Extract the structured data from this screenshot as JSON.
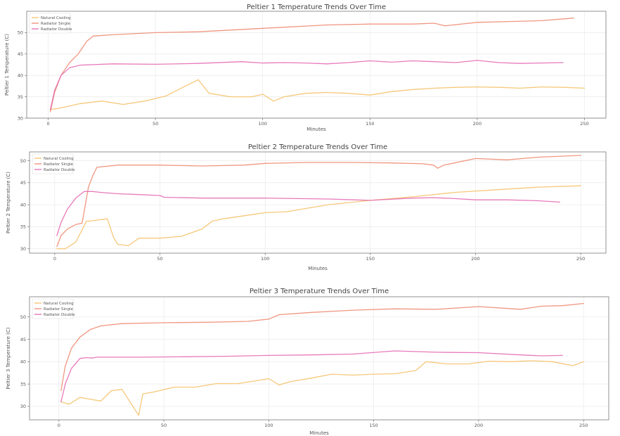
{
  "colors": {
    "natural": "#f5c26b",
    "single": "#ee8c72",
    "double": "#e66bb3"
  },
  "chart_data": [
    {
      "type": "line",
      "title": "Peltier 1 Temperature Trends Over Time",
      "xlabel": "Minutes",
      "ylabel": "Peltier 1 Temperature (C)",
      "xlim": [
        -10,
        260
      ],
      "ylim": [
        30,
        55
      ],
      "xticks": [
        0,
        50,
        100,
        150,
        200,
        250
      ],
      "yticks": [
        30,
        35,
        40,
        45,
        50
      ],
      "grid": true,
      "legend": "top-left",
      "series": [
        {
          "name": "Natural Cooling",
          "color_key": "natural",
          "x": [
            1,
            5,
            15,
            25,
            35,
            45,
            55,
            62,
            70,
            75,
            85,
            95,
            100,
            105,
            110,
            120,
            130,
            140,
            150,
            160,
            170,
            180,
            190,
            200,
            210,
            220,
            230,
            240,
            250
          ],
          "y": [
            32,
            32.3,
            33.4,
            34,
            33.2,
            34,
            35.2,
            37,
            39,
            35.8,
            35,
            35,
            35.6,
            34,
            35,
            35.8,
            36,
            35.8,
            35.4,
            36.2,
            36.7,
            37,
            37.2,
            37.3,
            37.2,
            37,
            37.3,
            37.2,
            37
          ]
        },
        {
          "name": "Radiator Single",
          "color_key": "single",
          "x": [
            1,
            3,
            6,
            10,
            14,
            18,
            21,
            30,
            50,
            70,
            100,
            130,
            150,
            170,
            180,
            185,
            200,
            215,
            230,
            245
          ],
          "y": [
            31.5,
            36,
            40,
            43,
            45,
            48,
            49.2,
            49.5,
            50,
            50.2,
            51,
            51.8,
            52,
            52,
            52.2,
            51.6,
            52.4,
            52.6,
            52.8,
            53.4
          ]
        },
        {
          "name": "Radiator Double",
          "color_key": "double",
          "x": [
            1,
            3,
            6,
            10,
            15,
            20,
            30,
            50,
            70,
            90,
            100,
            110,
            120,
            130,
            140,
            150,
            160,
            170,
            180,
            190,
            200,
            210,
            220,
            230,
            240
          ],
          "y": [
            32,
            36.5,
            40,
            41.8,
            42.4,
            42.5,
            42.7,
            42.6,
            42.8,
            43.2,
            42.9,
            43,
            42.9,
            42.7,
            43,
            43.4,
            43.1,
            43.4,
            43.2,
            43,
            43.5,
            43,
            42.8,
            42.9,
            43
          ]
        }
      ]
    },
    {
      "type": "line",
      "title": "Peltier 2 Temperature Trends Over Time",
      "xlabel": "Minutes",
      "ylabel": "Peltier 2 Temperature (C)",
      "xlim": [
        -12,
        262
      ],
      "ylim": [
        29,
        52
      ],
      "xticks": [
        0,
        50,
        100,
        150,
        200,
        250
      ],
      "yticks": [
        30,
        35,
        40,
        45,
        50
      ],
      "grid": true,
      "legend": "top-left",
      "series": [
        {
          "name": "Natural Cooling",
          "color_key": "natural",
          "x": [
            1,
            5,
            10,
            15,
            20,
            25,
            28,
            30,
            35,
            40,
            50,
            60,
            70,
            75,
            80,
            90,
            100,
            110,
            120,
            130,
            150,
            170,
            190,
            210,
            230,
            250
          ],
          "y": [
            30,
            30,
            31.5,
            36.2,
            36.5,
            36.8,
            32.5,
            31,
            30.7,
            32.4,
            32.4,
            32.8,
            34.5,
            36.3,
            36.8,
            37.5,
            38.2,
            38.4,
            39.2,
            40,
            41,
            41.8,
            42.8,
            43.4,
            44,
            44.3
          ]
        },
        {
          "name": "Radiator Single",
          "color_key": "single",
          "x": [
            1,
            3,
            6,
            10,
            13,
            16,
            18,
            20,
            30,
            50,
            70,
            90,
            100,
            120,
            140,
            160,
            175,
            180,
            182,
            185,
            200,
            215,
            230,
            250
          ],
          "y": [
            30.5,
            33,
            34.5,
            35.5,
            35.8,
            44,
            46.5,
            48.5,
            49,
            49,
            48.8,
            49,
            49.4,
            49.6,
            49.6,
            49.5,
            49.3,
            49,
            48.3,
            49,
            50.5,
            50.2,
            50.8,
            51.2
          ]
        },
        {
          "name": "Radiator Double",
          "color_key": "double",
          "x": [
            1,
            3,
            6,
            10,
            14,
            18,
            22,
            30,
            40,
            50,
            52,
            70,
            100,
            130,
            150,
            170,
            180,
            190,
            200,
            215,
            230,
            240
          ],
          "y": [
            33,
            36,
            39,
            41.5,
            43,
            43,
            42.8,
            42.5,
            42.3,
            42.1,
            41.7,
            41.5,
            41.5,
            41.3,
            41,
            41.5,
            41.6,
            41.4,
            41.1,
            41.1,
            40.9,
            40.6
          ]
        }
      ]
    },
    {
      "type": "line",
      "title": "Peltier 3 Temperature Trends Over Time",
      "xlabel": "Minutes",
      "ylabel": "Peltier 3 Temperature (C)",
      "xlim": [
        -14,
        262
      ],
      "ylim": [
        27,
        54.5
      ],
      "xticks": [
        0,
        50,
        100,
        150,
        200,
        250
      ],
      "yticks": [
        30,
        35,
        40,
        45,
        50
      ],
      "grid": true,
      "legend": "top-left",
      "series": [
        {
          "name": "Natural Cooling",
          "color_key": "natural",
          "x": [
            1,
            5,
            10,
            20,
            25,
            30,
            35,
            38,
            40,
            45,
            55,
            65,
            75,
            85,
            95,
            100,
            105,
            110,
            120,
            130,
            140,
            150,
            160,
            170,
            175,
            185,
            195,
            205,
            215,
            225,
            235,
            245,
            250
          ],
          "y": [
            31,
            30.5,
            32,
            31.2,
            33.5,
            33.8,
            30.2,
            28,
            32.8,
            33.2,
            34.3,
            34.3,
            35.1,
            35.1,
            35.8,
            36.2,
            34.8,
            35.5,
            36.3,
            37.2,
            37,
            37.2,
            37.3,
            38,
            40,
            39.5,
            39.5,
            40.1,
            40,
            40.2,
            40,
            39.1,
            40
          ]
        },
        {
          "name": "Radiator Single",
          "color_key": "single",
          "x": [
            1,
            3,
            6,
            10,
            15,
            20,
            30,
            50,
            70,
            90,
            100,
            105,
            120,
            140,
            160,
            180,
            200,
            220,
            230,
            240,
            250
          ],
          "y": [
            33.5,
            39,
            43,
            45.5,
            47.2,
            48,
            48.5,
            48.7,
            48.8,
            49,
            49.5,
            50.5,
            51,
            51.5,
            51.8,
            51.7,
            52.3,
            51.7,
            52.4,
            52.5,
            53
          ]
        },
        {
          "name": "Radiator Double",
          "color_key": "double",
          "x": [
            1,
            3,
            6,
            10,
            13,
            16,
            18,
            20,
            40,
            60,
            80,
            100,
            120,
            140,
            160,
            180,
            200,
            220,
            230,
            240
          ],
          "y": [
            31,
            35,
            38.5,
            40.7,
            40.9,
            40.8,
            41,
            41,
            41,
            41.1,
            41.2,
            41.4,
            41.5,
            41.7,
            42.4,
            42.1,
            42,
            41.5,
            41.3,
            41.4
          ]
        }
      ]
    }
  ]
}
